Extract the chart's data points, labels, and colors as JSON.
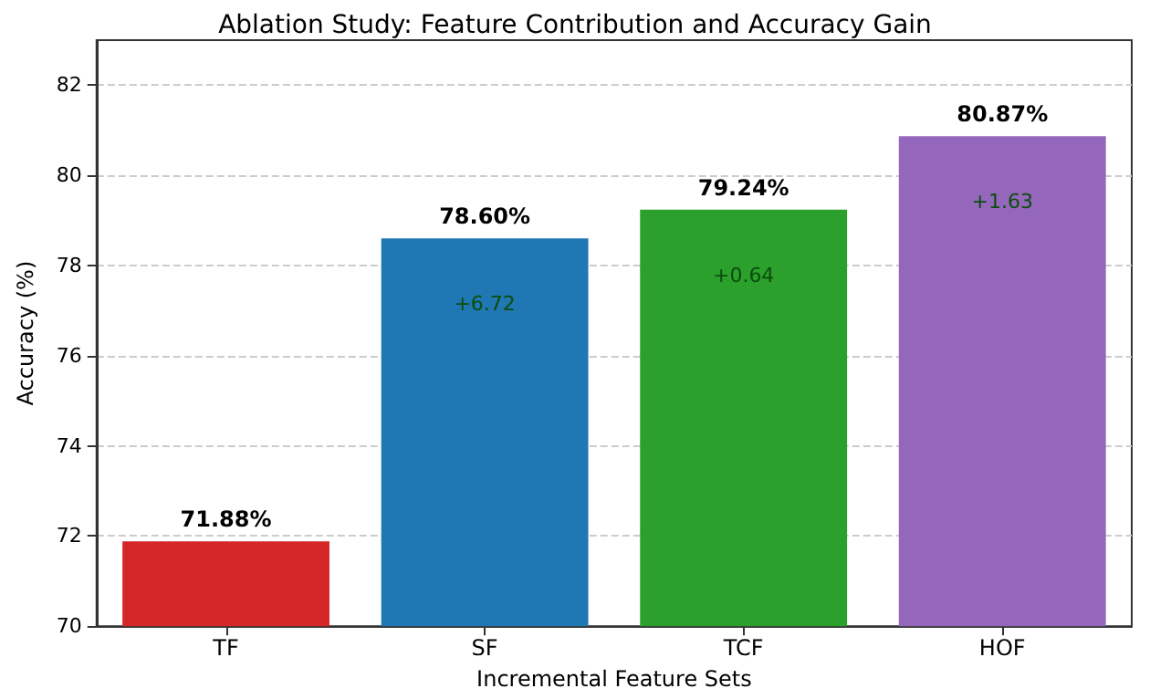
{
  "chart_data": {
    "type": "bar",
    "title": "Ablation Study: Feature Contribution and Accuracy Gain",
    "xlabel": "Incremental Feature Sets",
    "ylabel": "Accuracy (%)",
    "categories": [
      "TF",
      "SF",
      "TCF",
      "HOF"
    ],
    "values": [
      71.88,
      78.6,
      79.24,
      80.87
    ],
    "colors": [
      "#d62728",
      "#1f77b4",
      "#2ca02c",
      "#9467bd"
    ],
    "value_labels": [
      "71.88%",
      "78.60%",
      "79.24%",
      "80.87%"
    ],
    "annotations": [
      "+6.72",
      "+0.64",
      "+1.63"
    ],
    "ylim": [
      70,
      83
    ],
    "yticks": [
      70,
      72,
      74,
      76,
      78,
      80,
      82
    ],
    "grid": "y"
  }
}
